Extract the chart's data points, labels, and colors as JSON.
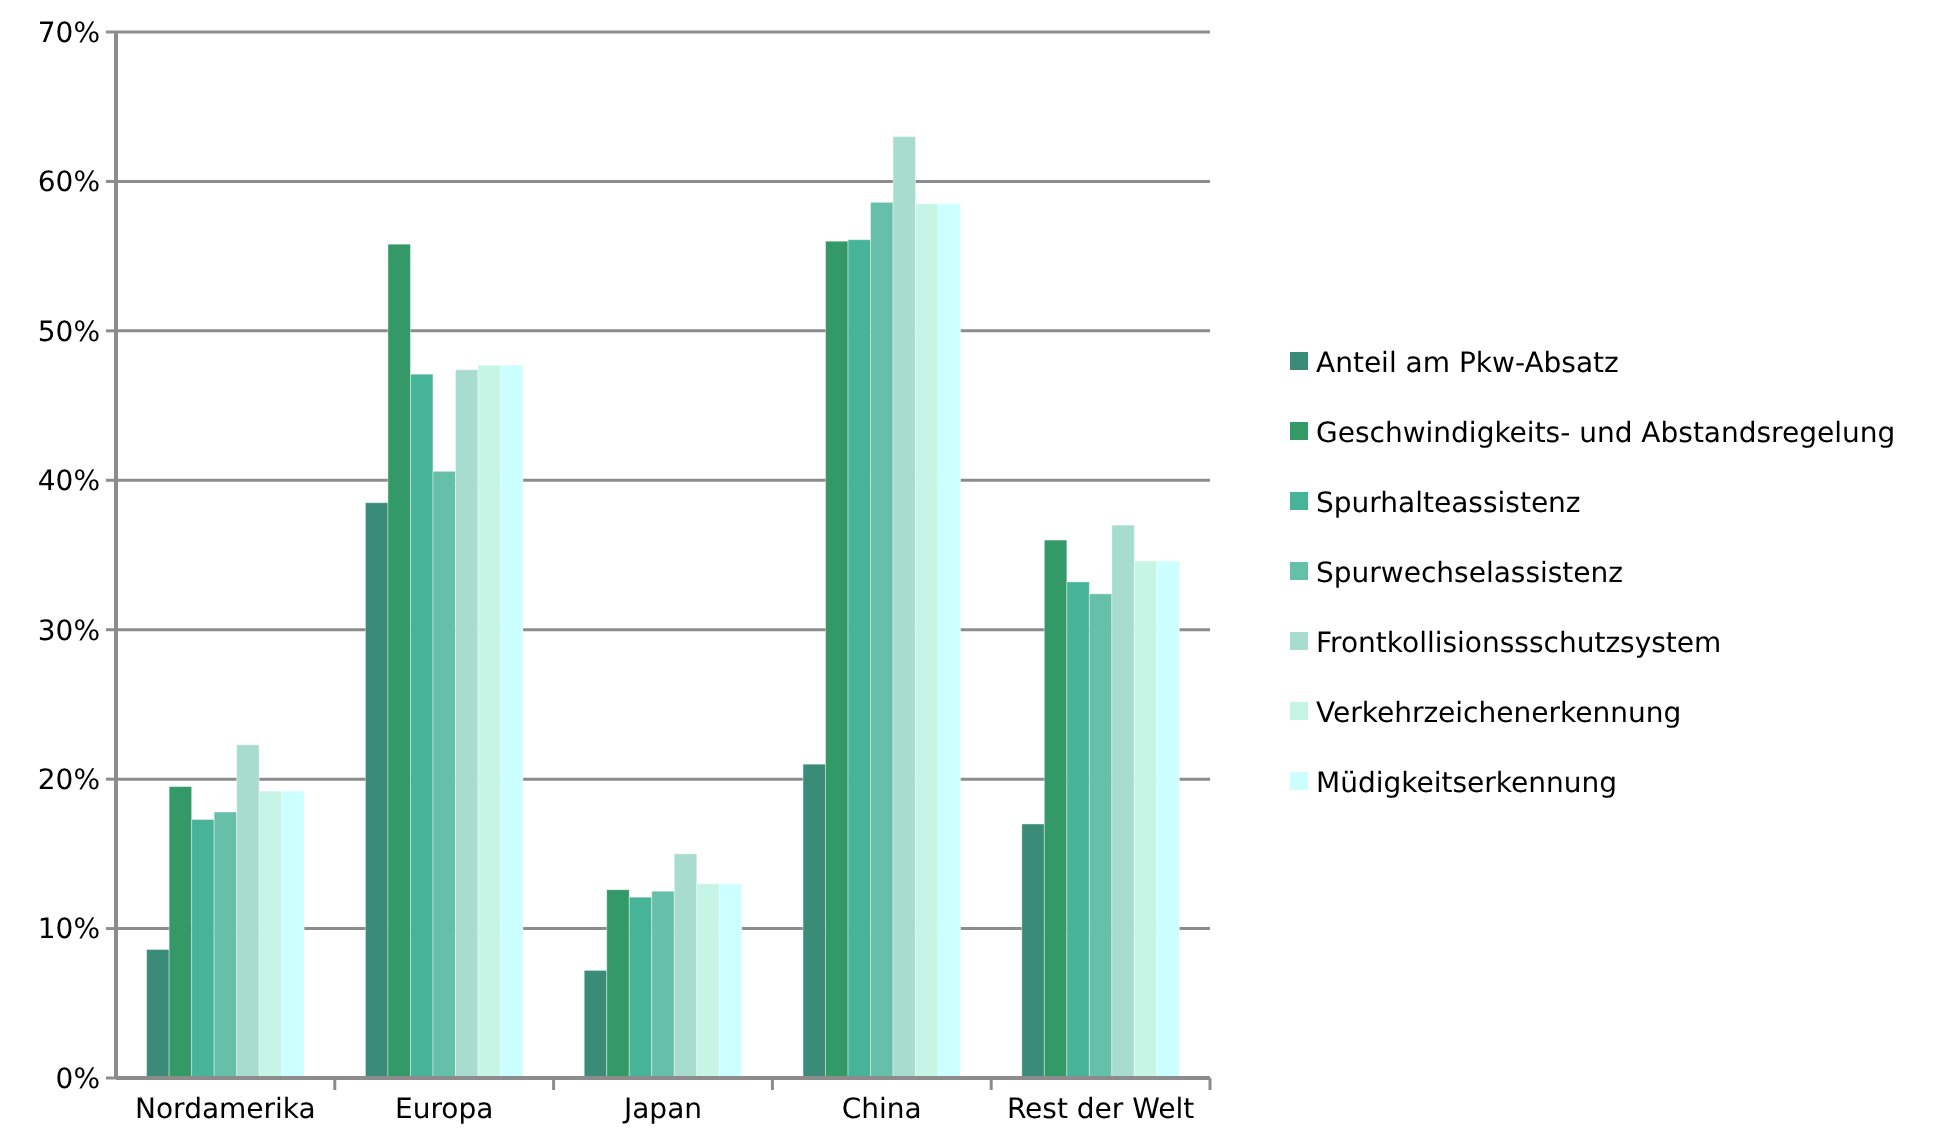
{
  "chart_data": {
    "type": "bar",
    "categories": [
      "Nordamerika",
      "Europa",
      "Japan",
      "China",
      "Rest der Welt"
    ],
    "series": [
      {
        "name": "Anteil am Pkw-Absatz",
        "color": "#3a8c78",
        "values": [
          8.6,
          38.5,
          7.2,
          21.0,
          17.0
        ]
      },
      {
        "name": "Geschwindigkeits- und Abstandsregelung",
        "color": "#339966",
        "values": [
          19.5,
          55.8,
          12.6,
          56.0,
          36.0
        ]
      },
      {
        "name": "Spurhalteassistenz",
        "color": "#47b399",
        "values": [
          17.3,
          47.1,
          12.1,
          56.1,
          33.2
        ]
      },
      {
        "name": "Spurwechselassistenz",
        "color": "#66bfa8",
        "values": [
          17.8,
          40.6,
          12.5,
          58.6,
          32.4
        ]
      },
      {
        "name": "Frontkollisionssschutzsystem",
        "color": "#a8dccf",
        "values": [
          22.3,
          47.4,
          15.0,
          63.0,
          37.0
        ]
      },
      {
        "name": "Verkehrzeichenerkennung",
        "color": "#c6f5e6",
        "values": [
          19.2,
          47.7,
          13.0,
          58.5,
          34.6
        ]
      },
      {
        "name": "Müdigkeitserkennung",
        "color": "#ccffff",
        "values": [
          19.2,
          47.7,
          13.0,
          58.5,
          34.6
        ]
      }
    ],
    "ylim": [
      0,
      70
    ],
    "yticks": [
      {
        "value": 0,
        "label": "0%"
      },
      {
        "value": 10,
        "label": "10%"
      },
      {
        "value": 20,
        "label": "20%"
      },
      {
        "value": 30,
        "label": "30%"
      },
      {
        "value": 40,
        "label": "40%"
      },
      {
        "value": 50,
        "label": "50%"
      },
      {
        "value": 60,
        "label": "60%"
      },
      {
        "value": 70,
        "label": "70%"
      }
    ],
    "grid": "y",
    "legend": "right"
  }
}
